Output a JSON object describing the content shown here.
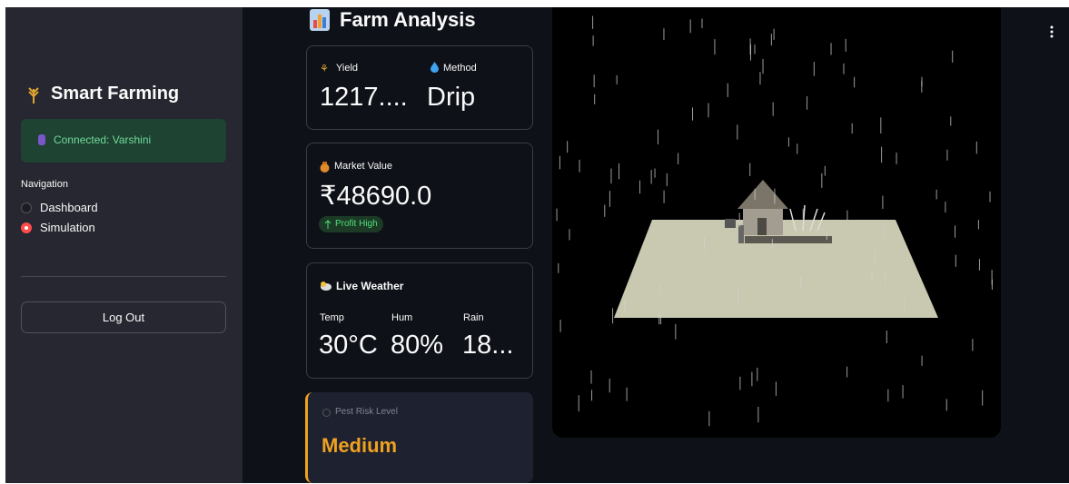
{
  "sidebar": {
    "title": "Smart Farming",
    "status": "Connected: Varshini",
    "navigation": {
      "label": "Navigation",
      "options": [
        "Dashboard",
        "Simulation"
      ],
      "selected_index": 1
    },
    "logout": "Log Out"
  },
  "main": {
    "title": "Farm Analysis",
    "yield": {
      "label": "Yield",
      "value": "1217...."
    },
    "method": {
      "label": "Method",
      "value": "Drip"
    },
    "market": {
      "label": "Market Value",
      "value": "₹48690.0",
      "delta": "Profit High"
    },
    "weather": {
      "title": "Live Weather",
      "metrics": [
        {
          "label": "Temp",
          "value": "30°C"
        },
        {
          "label": "Hum",
          "value": "80%"
        },
        {
          "label": "Rain",
          "value": "18..."
        }
      ]
    },
    "pest": {
      "label": "Pest Risk Level",
      "value": "Medium"
    }
  }
}
